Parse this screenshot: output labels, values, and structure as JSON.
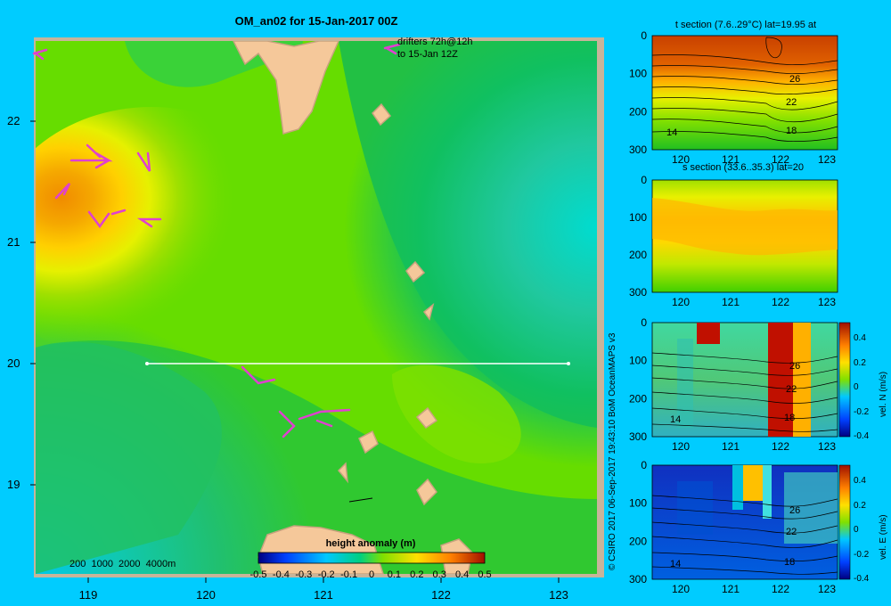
{
  "colors": {
    "background": "#00ccff",
    "land": "#f5c89a",
    "coast": "#c8a27e",
    "drifter": "#e040d0",
    "section_line": "#ffffff"
  },
  "main_map": {
    "title": "OM_an02 for 15-Jan-2017 00Z",
    "drifter_note_line1": "drifters 72h@12h",
    "drifter_note_line2": "to 15-Jan 12Z",
    "depth_legend": "200  1000  2000  4000m",
    "colorbar_title": "height anomaly (m)",
    "colorbar_ticks": [
      "-0.5",
      "-0.4",
      "-0.3",
      "-0.2",
      "-0.1",
      "0",
      "0.1",
      "0.2",
      "0.3",
      "0.4",
      "0.5"
    ],
    "credit": "© CSIRO 2017   06-Sep-2017 19:43:10 BoM OceanMAPS v3"
  },
  "chart_data": [
    {
      "type": "heatmap",
      "title": "OM_an02 for 15-Jan-2017 00Z",
      "x_ticks": [
        "119",
        "120",
        "121",
        "122",
        "123"
      ],
      "y_ticks": [
        "22",
        "21",
        "20",
        "19"
      ],
      "xlim": [
        118.5,
        123.5
      ],
      "ylim": [
        18.2,
        22.8
      ],
      "colorbar": {
        "label": "height anomaly (m)",
        "range": [
          -0.5,
          0.5
        ]
      },
      "section_line": {
        "lat": 20,
        "lon": [
          119.5,
          123.2
        ]
      },
      "features": [
        {
          "name": "warm eddy",
          "lon": 119.3,
          "lat": 21.3,
          "value": 0.3
        },
        {
          "name": "cool anomaly",
          "lon": 123.4,
          "lat": 21.5,
          "value": -0.1
        },
        {
          "name": "cool anomaly south-west",
          "lon": 118.8,
          "lat": 18.6,
          "value": -0.1
        }
      ]
    },
    {
      "type": "heatmap",
      "title": "t section (7.6..29°C) lat=19.95 at",
      "x_ticks": [
        "120",
        "121",
        "122",
        "123"
      ],
      "y_ticks": [
        "0",
        "100",
        "200",
        "300"
      ],
      "contour_labels": [
        "26",
        "22",
        "18",
        "14"
      ]
    },
    {
      "type": "heatmap",
      "title": "s section (33.6..35.3) lat=20",
      "x_ticks": [
        "120",
        "121",
        "122",
        "123"
      ],
      "y_ticks": [
        "0",
        "100",
        "200",
        "300"
      ]
    },
    {
      "type": "heatmap",
      "x_ticks": [
        "120",
        "121",
        "122",
        "123"
      ],
      "y_ticks": [
        "0",
        "100",
        "200",
        "300"
      ],
      "contour_labels": [
        "26",
        "22",
        "18",
        "14"
      ],
      "colorbar": {
        "label": "vel. N (m/s)",
        "ticks": [
          "0.4",
          "0.2",
          "0",
          "-0.2",
          "-0.4"
        ]
      }
    },
    {
      "type": "heatmap",
      "x_ticks": [
        "120",
        "121",
        "122",
        "123"
      ],
      "y_ticks": [
        "0",
        "100",
        "200",
        "300"
      ],
      "contour_labels": [
        "26",
        "22",
        "18",
        "14"
      ],
      "colorbar": {
        "label": "vel. E (m/s)",
        "ticks": [
          "0.4",
          "0.2",
          "0",
          "-0.2",
          "-0.4"
        ]
      }
    }
  ]
}
